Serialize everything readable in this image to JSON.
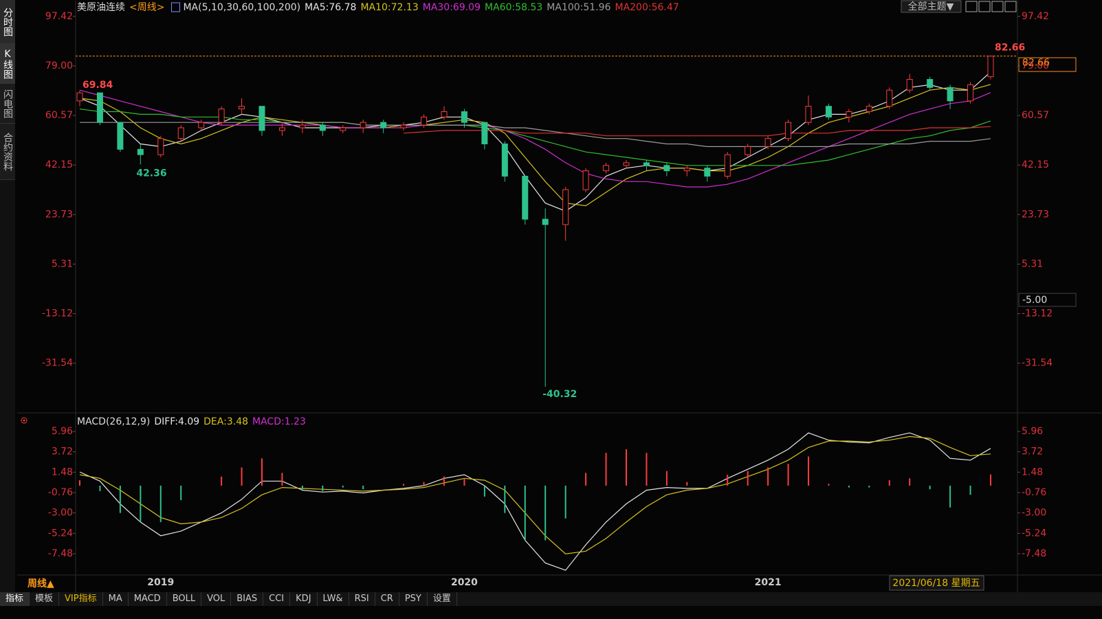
{
  "ui": {
    "sidebar": [
      "分时图",
      "K线图",
      "闪电图",
      "合约资料"
    ],
    "theme_button": "全部主题▼",
    "cursor_value": "-5.00",
    "period_button": "周线▲",
    "cursor_date": "2021/06/18 星期五",
    "toolbar": [
      "指标",
      "模板",
      "VIP指标",
      "MA",
      "MACD",
      "BOLL",
      "VOL",
      "BIAS",
      "CCI",
      "KDJ",
      "LW&",
      "RSI",
      "CR",
      "PSY",
      "设置"
    ]
  },
  "chart_data": [
    {
      "type": "candlestick",
      "title": "美原油连续",
      "period": "<周线>",
      "indicator": "MA(5,10,30,60,100,200)",
      "categories": [
        null,
        null,
        null,
        null,
        "2019",
        null,
        null,
        null,
        null,
        null,
        null,
        null,
        null,
        null,
        null,
        null,
        null,
        null,
        null,
        "2020",
        null,
        null,
        null,
        null,
        null,
        null,
        null,
        null,
        null,
        null,
        null,
        null,
        null,
        null,
        "2021",
        null,
        null,
        null,
        null,
        null,
        null,
        null,
        null,
        null,
        null,
        null
      ],
      "open": [
        66,
        69,
        58,
        48,
        46,
        52,
        56,
        58,
        63,
        64,
        55,
        56,
        57,
        55,
        56,
        58,
        56,
        57,
        60,
        62,
        58,
        50,
        38,
        22,
        20,
        33,
        40,
        42,
        43,
        42,
        40,
        41,
        38,
        46,
        49,
        52,
        58,
        64,
        60,
        62,
        64,
        70,
        74,
        71,
        66,
        75
      ],
      "high": [
        69.84,
        69,
        58,
        50,
        53,
        57,
        59,
        64,
        67,
        64,
        58,
        59,
        58,
        57,
        59,
        59,
        58,
        61,
        64,
        63,
        58,
        51,
        38,
        26,
        34,
        41,
        43,
        44,
        44,
        43,
        42,
        42,
        47,
        50,
        53,
        59,
        68,
        65,
        63,
        65,
        71,
        76,
        75,
        72,
        73,
        82.66
      ],
      "low": [
        64,
        57,
        47,
        42.36,
        45,
        51,
        55,
        57,
        61,
        53,
        53,
        54,
        53,
        54,
        54,
        54,
        55,
        56,
        59,
        56,
        48,
        36,
        20,
        -40.32,
        14,
        32,
        39,
        41,
        40,
        38,
        38,
        36,
        37,
        45,
        48,
        51,
        57,
        59,
        58,
        61,
        63,
        69,
        70,
        63,
        65,
        74
      ],
      "close": [
        69,
        58,
        48,
        46,
        52,
        56,
        58,
        63,
        64,
        55,
        56,
        57,
        55,
        56,
        58,
        56,
        57,
        60,
        62,
        58,
        50,
        38,
        22,
        20,
        33,
        40,
        42,
        43,
        42,
        40,
        41,
        38,
        46,
        49,
        52,
        58,
        64,
        60,
        62,
        64,
        70,
        74,
        71,
        66,
        72,
        82.66
      ],
      "up_color": "#ff3c3c",
      "down_color": "#2ec28c",
      "last_line_color": "#ff8c1a",
      "ylim": [
        -48.5,
        102.5
      ],
      "yticks": [
        97.42,
        {
          "value": 79,
          "label": "79.00"
        },
        60.57,
        42.15,
        23.73,
        5.31,
        -13.12,
        -31.54
      ],
      "grid": false,
      "series": [
        {
          "name": "MA5:76.78",
          "color": "#e6e6e6",
          "values": [
            67,
            64,
            57,
            50,
            49,
            51,
            55,
            58,
            61,
            60,
            58,
            56,
            56,
            56,
            56,
            57,
            57,
            58,
            60,
            60,
            57,
            49,
            38,
            28,
            25,
            30,
            38,
            41,
            42,
            41,
            41,
            40,
            41,
            45,
            49,
            53,
            59,
            61,
            61,
            63,
            66,
            71,
            72,
            70,
            70,
            76.78
          ]
        },
        {
          "name": "MA10:72.13",
          "color": "#d8c41c",
          "values": [
            67,
            66,
            62,
            56,
            52,
            50,
            52,
            55,
            58,
            60,
            59,
            58,
            57,
            56,
            56,
            56,
            57,
            57,
            58,
            59,
            58,
            54,
            45,
            36,
            28,
            27,
            32,
            37,
            40,
            41,
            41,
            40,
            40,
            42,
            45,
            49,
            54,
            58,
            60,
            62,
            64,
            67,
            70,
            71,
            70,
            72.13
          ]
        },
        {
          "name": "MA30:69.09",
          "color": "#d22fd2",
          "values": [
            70,
            68,
            66,
            64,
            62,
            60,
            58,
            57,
            57,
            57,
            57,
            57,
            57,
            56,
            56,
            56,
            56,
            57,
            57,
            57,
            57,
            55,
            52,
            48,
            43,
            39,
            37,
            36,
            36,
            35,
            34,
            34,
            35,
            37,
            40,
            43,
            46,
            49,
            52,
            55,
            58,
            61,
            63,
            65,
            66,
            69.09
          ]
        },
        {
          "name": "MA60:58.53",
          "color": "#2fc02f",
          "values": [
            63,
            62,
            62,
            61,
            61,
            60,
            60,
            60,
            59,
            59,
            58,
            58,
            58,
            58,
            57,
            57,
            57,
            57,
            57,
            57,
            56,
            55,
            53,
            51,
            49,
            47,
            46,
            45,
            44,
            43,
            42,
            42,
            42,
            42,
            42,
            42,
            43,
            44,
            46,
            48,
            50,
            52,
            53,
            55,
            56,
            58.53
          ]
        },
        {
          "name": "MA100:51.96",
          "color": "#9c9c9c",
          "values": [
            58,
            58,
            58,
            58,
            58,
            58,
            58,
            58,
            58,
            58,
            58,
            58,
            58,
            58,
            57,
            57,
            57,
            57,
            57,
            57,
            57,
            56,
            56,
            55,
            54,
            53,
            52,
            52,
            51,
            50,
            50,
            49,
            49,
            49,
            49,
            49,
            49,
            49,
            50,
            50,
            50,
            50,
            51,
            51,
            51,
            51.96
          ]
        },
        {
          "name": "MA200:56.47",
          "color": "#e23232",
          "values": [
            null,
            null,
            null,
            null,
            null,
            null,
            null,
            null,
            null,
            null,
            null,
            null,
            null,
            null,
            null,
            null,
            54,
            54.5,
            55,
            55,
            55,
            55,
            54,
            54,
            54,
            54,
            53,
            53,
            53,
            53,
            53,
            53,
            53,
            53,
            53,
            54,
            54,
            54,
            55,
            55,
            55,
            55,
            56,
            56,
            56,
            56.47
          ]
        }
      ]
    },
    {
      "type": "macd",
      "title": "MACD(26,12,9)",
      "up_color": "#ff3c3c",
      "down_color": "#2ec28c",
      "ylim": [
        -9.8,
        6.6
      ],
      "yticks": [
        5.96,
        3.72,
        1.48,
        -0.76,
        {
          "value": -3,
          "label": "-3.00"
        },
        -5.24,
        -7.48
      ],
      "series": [
        {
          "name": "DIFF:4.09",
          "color": "#e6e6e6",
          "values": [
            1.5,
            0.5,
            -2,
            -4,
            -5.5,
            -5,
            -4,
            -3,
            -1.5,
            0.5,
            0.5,
            -0.5,
            -0.7,
            -0.6,
            -0.8,
            -0.5,
            -0.3,
            0,
            0.8,
            1.2,
            0,
            -2,
            -6,
            -8.5,
            -9.3,
            -6.5,
            -4,
            -2,
            -0.5,
            -0.2,
            -0.3,
            -0.3,
            0.8,
            1.8,
            2.8,
            4,
            5.8,
            5,
            4.8,
            4.7,
            5.3,
            5.8,
            5,
            3,
            2.8,
            4.09
          ]
        },
        {
          "name": "DEA:3.48",
          "color": "#d8c41c",
          "values": [
            1.2,
            0.8,
            -0.5,
            -2,
            -3.5,
            -4.2,
            -4,
            -3.5,
            -2.5,
            -1,
            -0.2,
            -0.3,
            -0.4,
            -0.5,
            -0.6,
            -0.5,
            -0.4,
            -0.2,
            0.3,
            0.8,
            0.6,
            -0.5,
            -3,
            -5.5,
            -7.5,
            -7.2,
            -5.8,
            -4,
            -2.3,
            -1,
            -0.5,
            -0.3,
            0.2,
            1,
            1.8,
            2.8,
            4.2,
            4.9,
            4.9,
            4.8,
            5,
            5.4,
            5.2,
            4.2,
            3.3,
            3.48
          ]
        },
        {
          "name": "MACD:1.23",
          "color": "#d22fd2",
          "histogram": true,
          "values": [
            0.6,
            -0.6,
            -3,
            -4,
            -4,
            -1.6,
            0,
            1,
            2,
            3,
            1.4,
            -0.4,
            -0.6,
            -0.2,
            -0.4,
            0,
            0.2,
            0.4,
            1,
            0.8,
            -1.2,
            -3,
            -6,
            -6,
            -3.6,
            1.4,
            3.6,
            4,
            3.6,
            1.6,
            0.4,
            0,
            1.2,
            1.6,
            2,
            2.4,
            3.2,
            0.2,
            -0.2,
            -0.2,
            0.6,
            0.8,
            -0.4,
            -2.4,
            -1,
            1.23
          ]
        }
      ]
    }
  ]
}
